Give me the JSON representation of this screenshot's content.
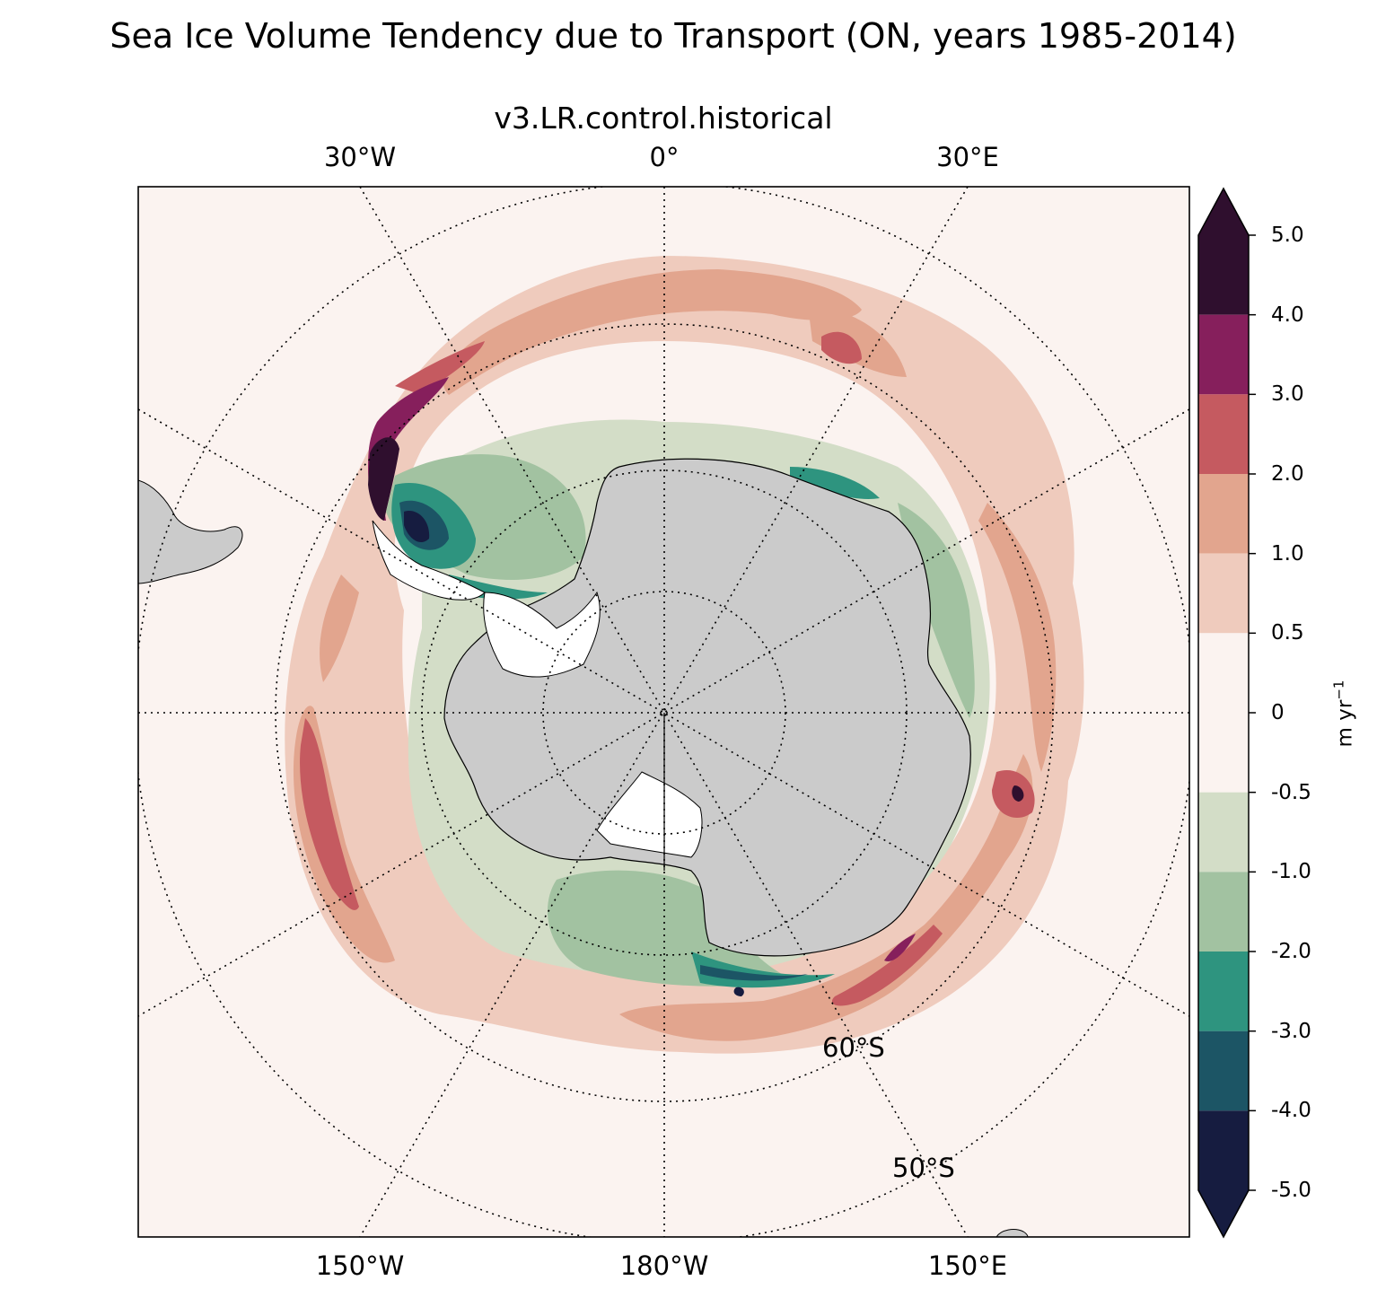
{
  "title": "Sea Ice Volume Tendency due to Transport (ON, years 1985-2014)",
  "subtitle": "v3.LR.control.historical",
  "longitude_labels": {
    "top": [
      "30°W",
      "0°",
      "30°E"
    ],
    "bottom": [
      "150°W",
      "180°W",
      "150°E"
    ]
  },
  "latitude_labels": [
    "60°S",
    "50°S"
  ],
  "colorbar": {
    "units_label": "m yr",
    "units_exponent": "−1",
    "ticks": [
      "5.0",
      "4.0",
      "3.0",
      "2.0",
      "1.0",
      "0.5",
      "0",
      "-0.5",
      "-1.0",
      "-2.0",
      "-3.0",
      "-4.0",
      "-5.0"
    ],
    "colors": [
      "#2f0f2e",
      "#861f5c",
      "#c55a60",
      "#e2a58e",
      "#efcbbd",
      "#fbf3f0",
      "#d3ddc7",
      "#a2c2a1",
      "#2e947f",
      "#1c5565",
      "#161c40"
    ],
    "levels": [
      {
        "from": 4.0,
        "to": 5.0,
        "color": "#2f0f2e"
      },
      {
        "from": 3.0,
        "to": 4.0,
        "color": "#861f5c"
      },
      {
        "from": 2.0,
        "to": 3.0,
        "color": "#c55a60"
      },
      {
        "from": 1.0,
        "to": 2.0,
        "color": "#e2a58e"
      },
      {
        "from": 0.5,
        "to": 1.0,
        "color": "#efcbbd"
      },
      {
        "from": -0.5,
        "to": 0.5,
        "color": "#fbf3f0"
      },
      {
        "from": -1.0,
        "to": -0.5,
        "color": "#d3ddc7"
      },
      {
        "from": -2.0,
        "to": -1.0,
        "color": "#a2c2a1"
      },
      {
        "from": -3.0,
        "to": -2.0,
        "color": "#2e947f"
      },
      {
        "from": -4.0,
        "to": -3.0,
        "color": "#1c5565"
      },
      {
        "from": -5.0,
        "to": -4.0,
        "color": "#161c40"
      }
    ],
    "extend": "both"
  },
  "map": {
    "projection": "South Polar Stereographic",
    "land_color": "#cbcbcb",
    "ocean_color": "#fbf3f0"
  }
}
